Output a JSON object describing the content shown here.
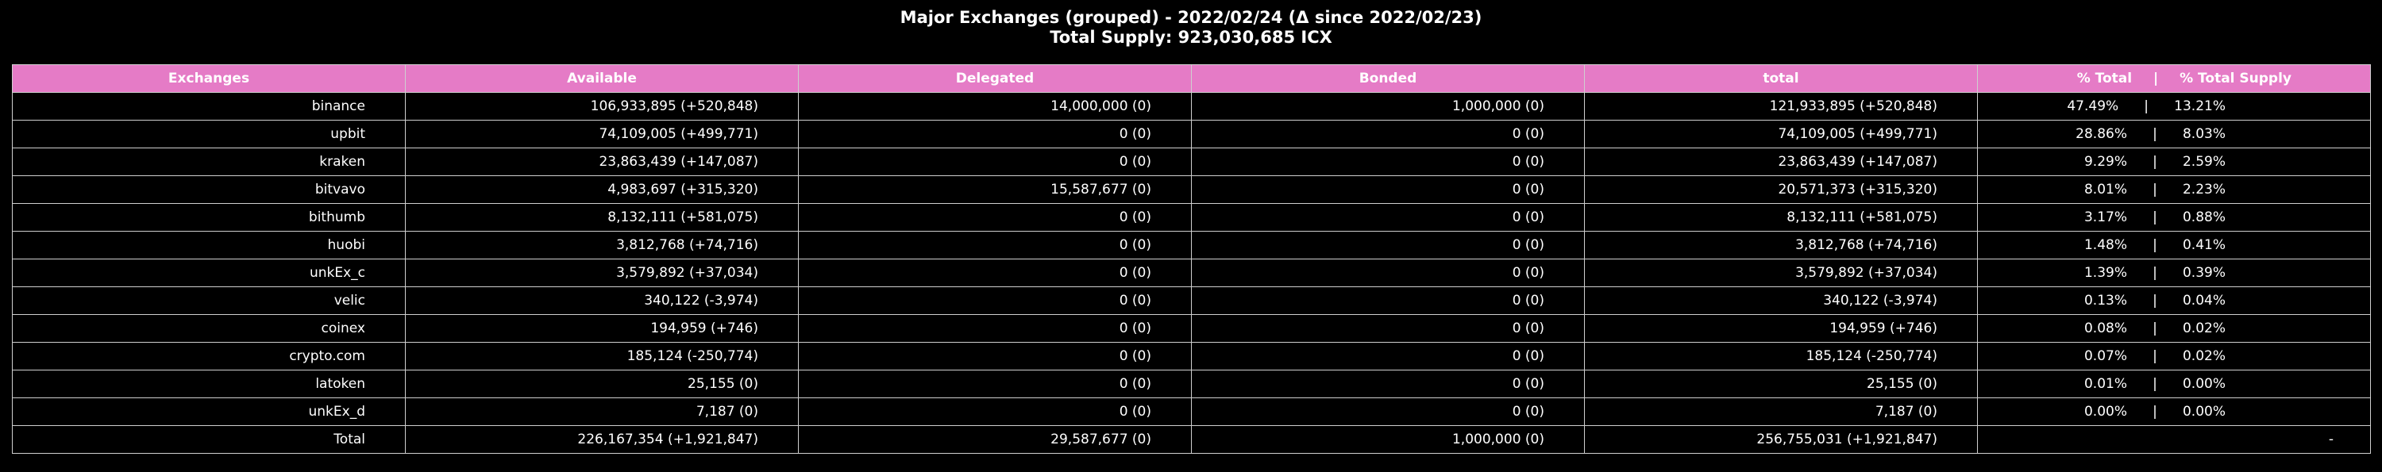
{
  "chart_data": {
    "type": "table",
    "title": "Major Exchanges (grouped) - 2022/02/24 (Δ since 2022/02/23)",
    "subtitle": "Total Supply: 923,030,685 ICX",
    "header_color": "#e57bc6",
    "columns": [
      "Exchanges",
      "Available",
      "Delegated",
      "Bonded",
      "total",
      "% Total",
      "% Total Supply"
    ],
    "rows": [
      {
        "name": "binance",
        "available": "106,933,895 (+520,848)",
        "delegated": "14,000,000 (0)",
        "bonded": "1,000,000 (0)",
        "total": "121,933,895 (+520,848)",
        "pct_total": "47.49%",
        "pct_supply": "13.21%"
      },
      {
        "name": "upbit",
        "available": "74,109,005 (+499,771)",
        "delegated": "0 (0)",
        "bonded": "0 (0)",
        "total": "74,109,005 (+499,771)",
        "pct_total": "28.86%",
        "pct_supply": "8.03%"
      },
      {
        "name": "kraken",
        "available": "23,863,439 (+147,087)",
        "delegated": "0 (0)",
        "bonded": "0 (0)",
        "total": "23,863,439 (+147,087)",
        "pct_total": "9.29%",
        "pct_supply": "2.59%"
      },
      {
        "name": "bitvavo",
        "available": "4,983,697 (+315,320)",
        "delegated": "15,587,677 (0)",
        "bonded": "0 (0)",
        "total": "20,571,373 (+315,320)",
        "pct_total": "8.01%",
        "pct_supply": "2.23%"
      },
      {
        "name": "bithumb",
        "available": "8,132,111 (+581,075)",
        "delegated": "0 (0)",
        "bonded": "0 (0)",
        "total": "8,132,111 (+581,075)",
        "pct_total": "3.17%",
        "pct_supply": "0.88%"
      },
      {
        "name": "huobi",
        "available": "3,812,768 (+74,716)",
        "delegated": "0 (0)",
        "bonded": "0 (0)",
        "total": "3,812,768 (+74,716)",
        "pct_total": "1.48%",
        "pct_supply": "0.41%"
      },
      {
        "name": "unkEx_c",
        "available": "3,579,892 (+37,034)",
        "delegated": "0 (0)",
        "bonded": "0 (0)",
        "total": "3,579,892 (+37,034)",
        "pct_total": "1.39%",
        "pct_supply": "0.39%"
      },
      {
        "name": "velic",
        "available": "340,122 (-3,974)",
        "delegated": "0 (0)",
        "bonded": "0 (0)",
        "total": "340,122 (-3,974)",
        "pct_total": "0.13%",
        "pct_supply": "0.04%"
      },
      {
        "name": "coinex",
        "available": "194,959 (+746)",
        "delegated": "0 (0)",
        "bonded": "0 (0)",
        "total": "194,959 (+746)",
        "pct_total": "0.08%",
        "pct_supply": "0.02%"
      },
      {
        "name": "crypto.com",
        "available": "185,124 (-250,774)",
        "delegated": "0 (0)",
        "bonded": "0 (0)",
        "total": "185,124 (-250,774)",
        "pct_total": "0.07%",
        "pct_supply": "0.02%"
      },
      {
        "name": "latoken",
        "available": "25,155 (0)",
        "delegated": "0 (0)",
        "bonded": "0 (0)",
        "total": "25,155 (0)",
        "pct_total": "0.01%",
        "pct_supply": "0.00%"
      },
      {
        "name": "unkEx_d",
        "available": "7,187 (0)",
        "delegated": "0 (0)",
        "bonded": "0 (0)",
        "total": "7,187 (0)",
        "pct_total": "0.00%",
        "pct_supply": "0.00%"
      }
    ],
    "total_row": {
      "name": "Total",
      "available": "226,167,354 (+1,921,847)",
      "delegated": "29,587,677 (0)",
      "bonded": "1,000,000 (0)",
      "total": "256,755,031 (+1,921,847)",
      "pct": "-"
    },
    "pct_separator": "|"
  }
}
